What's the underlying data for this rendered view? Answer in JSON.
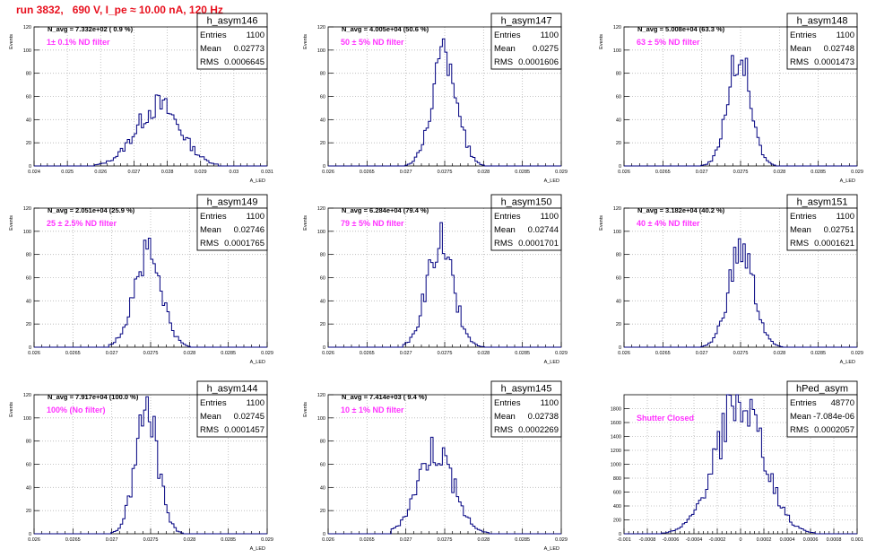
{
  "page_title": "run 3832,   690 V, I_pe ≈ 10.00 nA, 120 Hz",
  "chart_data": [
    {
      "type": "bar",
      "name": "h_asym146",
      "navg": "N_avg = 7.332e+02 ( 0.9 %)",
      "filter": "1± 0.1% ND filter",
      "stats": [
        [
          "Entries",
          "1100"
        ],
        [
          "Mean",
          "0.02773"
        ],
        [
          "RMS",
          "0.0006645"
        ]
      ],
      "ylabel": "Events",
      "xlabel": "A_LED",
      "xlim": [
        0.024,
        0.031
      ],
      "ylim": [
        0,
        120
      ],
      "ymajor": [
        0,
        20,
        40,
        60,
        80,
        100,
        120
      ],
      "xmajor": [
        0.024,
        0.025,
        0.026,
        0.027,
        0.028,
        0.029,
        0.03,
        0.031
      ],
      "xticklabels": [
        "0.024",
        "0.025",
        "0.026",
        "0.027",
        "0.028",
        "0.029",
        "0.03",
        "0.031"
      ],
      "mean": 0.02773,
      "rms": 0.0006645,
      "peak": 52,
      "xlo": 0.0258,
      "xhi": 0.0295
    },
    {
      "type": "bar",
      "name": "h_asym147",
      "navg": "N_avg = 4.005e+04 (50.6 %)",
      "filter": "50 ± 5% ND filter",
      "stats": [
        [
          "Entries",
          "1100"
        ],
        [
          "Mean",
          "0.0275"
        ],
        [
          "RMS",
          "0.0001606"
        ]
      ],
      "ylabel": "Events",
      "xlabel": "A_LED",
      "xlim": [
        0.026,
        0.029
      ],
      "ylim": [
        0,
        120
      ],
      "ymajor": [
        0,
        20,
        40,
        60,
        80,
        100,
        120
      ],
      "xmajor": [
        0.026,
        0.0265,
        0.027,
        0.0275,
        0.028,
        0.0285,
        0.029
      ],
      "xticklabels": [
        "0.026",
        "0.0265",
        "0.027",
        "0.0275",
        "0.028",
        "0.0285",
        "0.029"
      ],
      "mean": 0.0275,
      "rms": 0.0001606,
      "peak": 97,
      "xlo": 0.02695,
      "xhi": 0.02805
    },
    {
      "type": "bar",
      "name": "h_asym148",
      "navg": "N_avg = 5.008e+04 (63.3 %)",
      "filter": "63 ± 5% ND filter",
      "stats": [
        [
          "Entries",
          "1100"
        ],
        [
          "Mean",
          "0.02748"
        ],
        [
          "RMS",
          "0.0001473"
        ]
      ],
      "ylabel": "Events",
      "xlabel": "A_LED",
      "xlim": [
        0.026,
        0.029
      ],
      "ylim": [
        0,
        120
      ],
      "ymajor": [
        0,
        20,
        40,
        60,
        80,
        100,
        120
      ],
      "xmajor": [
        0.026,
        0.0265,
        0.027,
        0.0275,
        0.028,
        0.0285,
        0.029
      ],
      "xticklabels": [
        "0.026",
        "0.0265",
        "0.027",
        "0.0275",
        "0.028",
        "0.0285",
        "0.029"
      ],
      "mean": 0.02748,
      "rms": 0.0001473,
      "peak": 95,
      "xlo": 0.02695,
      "xhi": 0.0281
    },
    {
      "type": "bar",
      "name": "h_asym149",
      "navg": "N_avg = 2.051e+04 (25.9 %)",
      "filter": "25 ± 2.5% ND filter",
      "stats": [
        [
          "Entries",
          "1100"
        ],
        [
          "Mean",
          "0.02746"
        ],
        [
          "RMS",
          "0.0001765"
        ]
      ],
      "ylabel": "Events",
      "xlabel": "A_LED",
      "xlim": [
        0.026,
        0.029
      ],
      "ylim": [
        0,
        120
      ],
      "ymajor": [
        0,
        20,
        40,
        60,
        80,
        100,
        120
      ],
      "xmajor": [
        0.026,
        0.0265,
        0.027,
        0.0275,
        0.028,
        0.0285,
        0.029
      ],
      "xticklabels": [
        "0.026",
        "0.0265",
        "0.027",
        "0.0275",
        "0.028",
        "0.0285",
        "0.029"
      ],
      "mean": 0.02746,
      "rms": 0.0001765,
      "peak": 83,
      "xlo": 0.02695,
      "xhi": 0.0281
    },
    {
      "type": "bar",
      "name": "h_asym150",
      "navg": "N_avg = 6.284e+04 (79.4 %)",
      "filter": "79 ± 5% ND filter",
      "stats": [
        [
          "Entries",
          "1100"
        ],
        [
          "Mean",
          "0.02744"
        ],
        [
          "RMS",
          "0.0001701"
        ]
      ],
      "ylabel": "Events",
      "xlabel": "A_LED",
      "xlim": [
        0.026,
        0.029
      ],
      "ylim": [
        0,
        120
      ],
      "ymajor": [
        0,
        20,
        40,
        60,
        80,
        100,
        120
      ],
      "xmajor": [
        0.026,
        0.0265,
        0.027,
        0.0275,
        0.028,
        0.0285,
        0.029
      ],
      "xticklabels": [
        "0.026",
        "0.0265",
        "0.027",
        "0.0275",
        "0.028",
        "0.0285",
        "0.029"
      ],
      "mean": 0.02744,
      "rms": 0.0001701,
      "peak": 90,
      "xlo": 0.02695,
      "xhi": 0.0281
    },
    {
      "type": "bar",
      "name": "h_asym151",
      "navg": "N_avg = 3.182e+04 (40.2 %)",
      "filter": "40 ± 4% ND filter",
      "stats": [
        [
          "Entries",
          "1100"
        ],
        [
          "Mean",
          "0.02751"
        ],
        [
          "RMS",
          "0.0001621"
        ]
      ],
      "ylabel": "Events",
      "xlabel": "A_LED",
      "xlim": [
        0.026,
        0.029
      ],
      "ylim": [
        0,
        120
      ],
      "ymajor": [
        0,
        20,
        40,
        60,
        80,
        100,
        120
      ],
      "xmajor": [
        0.026,
        0.0265,
        0.027,
        0.0275,
        0.028,
        0.0285,
        0.029
      ],
      "xticklabels": [
        "0.026",
        "0.0265",
        "0.027",
        "0.0275",
        "0.028",
        "0.0285",
        "0.029"
      ],
      "mean": 0.02751,
      "rms": 0.0001621,
      "peak": 82,
      "xlo": 0.02695,
      "xhi": 0.0281
    },
    {
      "type": "bar",
      "name": "h_asym144",
      "navg": "N_avg = 7.917e+04 (100.0 %)",
      "filter": "100% (No filter)",
      "stats": [
        [
          "Entries",
          "1100"
        ],
        [
          "Mean",
          "0.02745"
        ],
        [
          "RMS",
          "0.0001457"
        ]
      ],
      "ylabel": "Events",
      "xlabel": "A_LED",
      "xlim": [
        0.026,
        0.029
      ],
      "ylim": [
        0,
        120
      ],
      "ymajor": [
        0,
        20,
        40,
        60,
        80,
        100,
        120
      ],
      "xmajor": [
        0.026,
        0.0265,
        0.027,
        0.0275,
        0.028,
        0.0285,
        0.029
      ],
      "xticklabels": [
        "0.026",
        "0.0265",
        "0.027",
        "0.0275",
        "0.028",
        "0.0285",
        "0.029"
      ],
      "mean": 0.02745,
      "rms": 0.0001457,
      "peak": 106,
      "xlo": 0.02695,
      "xhi": 0.0281
    },
    {
      "type": "bar",
      "name": "h_asym145",
      "navg": "N_avg = 7.414e+03 ( 9.4 %)",
      "filter": "10 ± 1% ND filter",
      "stats": [
        [
          "Entries",
          "1100"
        ],
        [
          "Mean",
          "0.02738"
        ],
        [
          "RMS",
          "0.0002269"
        ]
      ],
      "ylabel": "Events",
      "xlabel": "A_LED",
      "xlim": [
        0.026,
        0.029
      ],
      "ylim": [
        0,
        120
      ],
      "ymajor": [
        0,
        20,
        40,
        60,
        80,
        100,
        120
      ],
      "xmajor": [
        0.026,
        0.0265,
        0.027,
        0.0275,
        0.028,
        0.0285,
        0.029
      ],
      "xticklabels": [
        "0.026",
        "0.0265",
        "0.027",
        "0.0275",
        "0.028",
        "0.0285",
        "0.029"
      ],
      "mean": 0.02738,
      "rms": 0.0002269,
      "peak": 73,
      "xlo": 0.0268,
      "xhi": 0.0281
    },
    {
      "type": "bar",
      "name": "hPed_asym",
      "navg": "",
      "filter": "Shutter Closed",
      "stats": [
        [
          "Entries",
          "48770"
        ],
        [
          "Mean",
          "-7.084e-06"
        ],
        [
          "RMS",
          "0.0002057"
        ]
      ],
      "ylabel": "",
      "xlabel": "",
      "xlim": [
        -0.001,
        0.001
      ],
      "ylim": [
        0,
        2000
      ],
      "ymajor": [
        0,
        200,
        400,
        600,
        800,
        1000,
        1200,
        1400,
        1600,
        1800
      ],
      "xmajor": [
        -0.001,
        -0.0008,
        -0.0006,
        -0.0004,
        -0.0002,
        0,
        0.0002,
        0.0004,
        0.0006,
        0.0008,
        0.001
      ],
      "xticklabels": [
        "-0.001",
        "-0.0008",
        "-0.0006",
        "-0.0004",
        "-0.0002",
        "0",
        "0.0002",
        "0.0004",
        "0.0006",
        "0.0008",
        "0.001"
      ],
      "mean": -7.084e-06,
      "rms": 0.0002057,
      "peak": 1870,
      "xlo": -0.00068,
      "xhi": 0.00065
    }
  ]
}
